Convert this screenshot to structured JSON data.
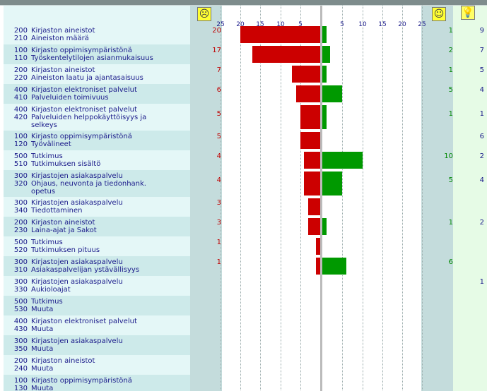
{
  "header": {
    "neg_icon": "frown-face-icon",
    "pos_icon": "smile-face-icon",
    "idea_icon": "lightbulb-icon"
  },
  "chart_data": {
    "type": "bar",
    "orientation": "horizontal-diverging",
    "xlim_negative": [
      0,
      25
    ],
    "xlim_positive": [
      0,
      25
    ],
    "ticks_negative": [
      "25",
      "20",
      "15",
      "10",
      "5"
    ],
    "ticks_positive": [
      "5",
      "10",
      "15",
      "20",
      "25"
    ],
    "colors": {
      "negative": "#cc0000",
      "positive": "#009900"
    },
    "rows": [
      {
        "group_code": "200",
        "group": "Kirjaston aineistot",
        "item_code": "210",
        "item": "Aineiston määrä",
        "negative": 20,
        "positive": 1,
        "ideas": 9
      },
      {
        "group_code": "100",
        "group": "Kirjasto oppimisympäristönä",
        "item_code": "110",
        "item": "Työskentelytilojen asianmukaisuus",
        "negative": 17,
        "positive": 2,
        "ideas": 7
      },
      {
        "group_code": "200",
        "group": "Kirjaston aineistot",
        "item_code": "220",
        "item": "Aineiston laatu ja ajantasaisuus",
        "negative": 7,
        "positive": 1,
        "ideas": 5
      },
      {
        "group_code": "400",
        "group": "Kirjaston elektroniset palvelut",
        "item_code": "410",
        "item": "Palveluiden toimivuus",
        "negative": 6,
        "positive": 5,
        "ideas": 4
      },
      {
        "group_code": "400",
        "group": "Kirjaston elektroniset palvelut",
        "item_code": "420",
        "item": "Palveluiden helppokäyttöisyys ja selkeys",
        "negative": 5,
        "positive": 1,
        "ideas": 1
      },
      {
        "group_code": "100",
        "group": "Kirjasto oppimisympäristönä",
        "item_code": "120",
        "item": "Työvälineet",
        "negative": 5,
        "positive": null,
        "ideas": 6
      },
      {
        "group_code": "500",
        "group": "Tutkimus",
        "item_code": "510",
        "item": "Tutkimuksen sisältö",
        "negative": 4,
        "positive": 10,
        "ideas": 2
      },
      {
        "group_code": "300",
        "group": "Kirjastojen asiakaspalvelu",
        "item_code": "320",
        "item": "Ohjaus, neuvonta ja tiedonhank. opetus",
        "negative": 4,
        "positive": 5,
        "ideas": 4
      },
      {
        "group_code": "300",
        "group": "Kirjastojen asiakaspalvelu",
        "item_code": "340",
        "item": "Tiedottaminen",
        "negative": 3,
        "positive": null,
        "ideas": null
      },
      {
        "group_code": "200",
        "group": "Kirjaston aineistot",
        "item_code": "230",
        "item": "Laina-ajat ja Sakot",
        "negative": 3,
        "positive": 1,
        "ideas": 2
      },
      {
        "group_code": "500",
        "group": "Tutkimus",
        "item_code": "520",
        "item": "Tutkimuksen pituus",
        "negative": 1,
        "positive": null,
        "ideas": null
      },
      {
        "group_code": "300",
        "group": "Kirjastojen asiakaspalvelu",
        "item_code": "310",
        "item": "Asiakaspalvelijan ystävällisyys",
        "negative": 1,
        "positive": 6,
        "ideas": null
      },
      {
        "group_code": "300",
        "group": "Kirjastojen asiakaspalvelu",
        "item_code": "330",
        "item": "Aukioloajat",
        "negative": null,
        "positive": null,
        "ideas": 1
      },
      {
        "group_code": "500",
        "group": "Tutkimus",
        "item_code": "530",
        "item": "Muuta",
        "negative": null,
        "positive": null,
        "ideas": null
      },
      {
        "group_code": "400",
        "group": "Kirjaston elektroniset palvelut",
        "item_code": "430",
        "item": "Muuta",
        "negative": null,
        "positive": null,
        "ideas": null
      },
      {
        "group_code": "300",
        "group": "Kirjastojen asiakaspalvelu",
        "item_code": "350",
        "item": "Muuta",
        "negative": null,
        "positive": null,
        "ideas": null
      },
      {
        "group_code": "200",
        "group": "Kirjaston aineistot",
        "item_code": "240",
        "item": "Muuta",
        "negative": null,
        "positive": null,
        "ideas": null
      },
      {
        "group_code": "100",
        "group": "Kirjasto oppimisympäristönä",
        "item_code": "130",
        "item": "Muuta",
        "negative": null,
        "positive": null,
        "ideas": null
      }
    ]
  }
}
